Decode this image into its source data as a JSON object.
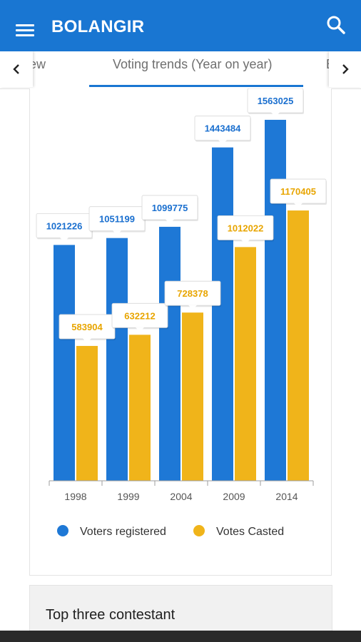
{
  "app": {
    "title": "BOLANGIR"
  },
  "tabs": [
    {
      "label": "Overview",
      "visible_label": "erview",
      "selected": false
    },
    {
      "label": "Voting trends (Year on year)",
      "selected": true
    },
    {
      "label": "E",
      "selected": false
    }
  ],
  "section": {
    "title": "Top three contestant"
  },
  "colors": {
    "primary": "#1976d2",
    "voters_registered": "#1e78d6",
    "votes_casted": "#f0b41a",
    "label_registered": "#1a6fcf",
    "label_casted": "#e8a500"
  },
  "icons": {
    "menu": "menu-icon",
    "search": "search-icon",
    "left": "chevron-left-icon",
    "right": "chevron-right-icon"
  },
  "chart_data": {
    "type": "bar",
    "categories": [
      "1998",
      "1999",
      "2004",
      "2009",
      "2014"
    ],
    "series": [
      {
        "name": "Voters registered",
        "values": [
          1021226,
          1051199,
          1099775,
          1443484,
          1563025
        ]
      },
      {
        "name": "Votes Casted",
        "values": [
          583904,
          632212,
          728378,
          1012022,
          1170405
        ]
      }
    ],
    "ylim": [
      0,
      1600000
    ],
    "grid": false,
    "legend": "bottom",
    "data_labels": true
  }
}
